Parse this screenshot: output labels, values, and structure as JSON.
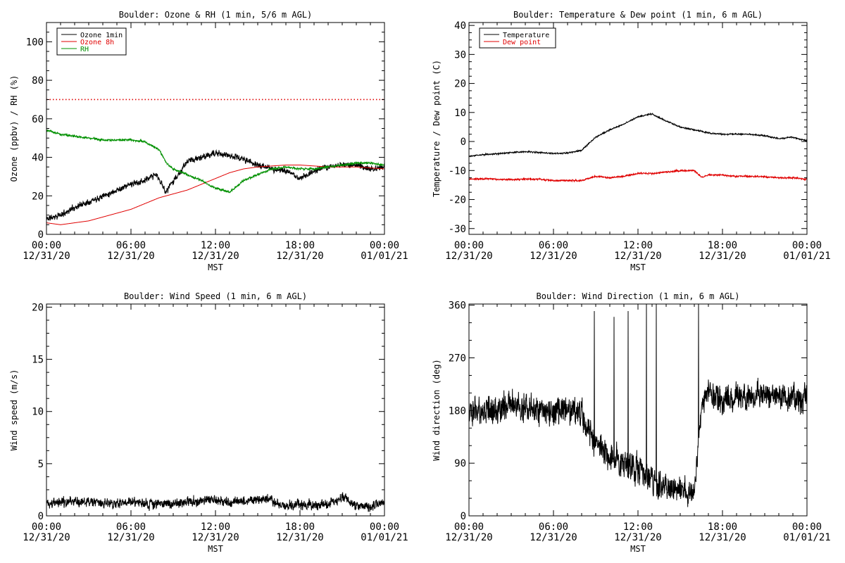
{
  "x_axis": {
    "ticks": [
      {
        "time": "00:00",
        "date": "12/31/20"
      },
      {
        "time": "06:00",
        "date": "12/31/20"
      },
      {
        "time": "12:00",
        "date": "12/31/20"
      },
      {
        "time": "18:00",
        "date": "12/31/20"
      },
      {
        "time": "00:00",
        "date": "01/01/21"
      }
    ],
    "label": "MST"
  },
  "chart_data": [
    {
      "type": "line",
      "title": "Boulder: Ozone & RH (1 min, 5/6 m AGL)",
      "ylabel": "Ozone (ppbv) / RH (%)",
      "xlabel": "MST",
      "x_unit": "hours since 00:00 MST 12/31/20",
      "xlim": [
        0,
        24
      ],
      "ylim": [
        0,
        110
      ],
      "yticks": [
        0,
        20,
        40,
        60,
        80,
        100
      ],
      "legend": "top-left",
      "reference_line": {
        "y": 70,
        "color": "#e00000",
        "style": "dotted"
      },
      "series": [
        {
          "name": "Ozone 1min",
          "color": "#000000",
          "noise": 2.0,
          "seed": 11,
          "x": [
            0,
            1,
            2,
            3,
            4,
            5,
            6,
            7,
            7.8,
            8.5,
            9,
            9.5,
            10,
            11,
            12,
            13,
            14,
            15,
            16,
            17,
            18,
            19,
            20,
            21,
            22,
            23,
            24
          ],
          "y": [
            8,
            10,
            14,
            17,
            20,
            23,
            26,
            28,
            31,
            22,
            28,
            32,
            38,
            40,
            42,
            41,
            39,
            36,
            34,
            33,
            29,
            33,
            35,
            36,
            36,
            34,
            35
          ]
        },
        {
          "name": "Ozone 8h",
          "color": "#e00000",
          "noise": 0,
          "seed": 1,
          "x": [
            0,
            1,
            2,
            3,
            4,
            5,
            6,
            7,
            8,
            9,
            10,
            11,
            12,
            13,
            14,
            15,
            16,
            17,
            18,
            19,
            20,
            21,
            22,
            23,
            24
          ],
          "y": [
            6,
            5,
            6,
            7,
            9,
            11,
            13,
            16,
            19,
            21,
            23,
            26,
            29,
            32,
            34,
            35,
            35.5,
            36,
            36,
            35.5,
            35,
            35,
            35,
            34.5,
            34
          ]
        },
        {
          "name": "RH",
          "color": "#009000",
          "noise": 0.7,
          "seed": 23,
          "x": [
            0,
            1,
            2,
            3,
            4,
            5,
            6,
            7,
            8,
            8.5,
            9,
            10,
            11,
            12,
            13,
            14,
            15,
            16,
            17,
            18,
            19,
            20,
            21,
            22,
            23,
            24
          ],
          "y": [
            54,
            52,
            51,
            50,
            49,
            49,
            49,
            48,
            44,
            37,
            34,
            31,
            28,
            24,
            22,
            28,
            31,
            34,
            35,
            34,
            34,
            35,
            36,
            37,
            37,
            36
          ]
        }
      ]
    },
    {
      "type": "line",
      "title": "Boulder: Temperature & Dew point (1 min, 6 m AGL)",
      "ylabel": "Temperature / Dew point (C)",
      "xlabel": "MST",
      "x_unit": "hours since 00:00 MST 12/31/20",
      "xlim": [
        0,
        24
      ],
      "ylim": [
        -32,
        41
      ],
      "yticks": [
        -30,
        -20,
        -10,
        0,
        10,
        20,
        30,
        40
      ],
      "legend": "top-left",
      "series": [
        {
          "name": "Temperature",
          "color": "#000000",
          "noise": 0.3,
          "seed": 31,
          "x": [
            0,
            1,
            2,
            3,
            4,
            5,
            6,
            7,
            8,
            9,
            10,
            11,
            12,
            13,
            14,
            15,
            16,
            17,
            18,
            19,
            20,
            21,
            22,
            23,
            24
          ],
          "y": [
            -5.2,
            -4.5,
            -4.2,
            -3.8,
            -3.5,
            -3.8,
            -4.2,
            -4.0,
            -3.0,
            1.5,
            4.0,
            6.0,
            8.5,
            9.5,
            7.0,
            5.0,
            4.0,
            3.0,
            2.5,
            2.5,
            2.5,
            2.0,
            1.0,
            1.5,
            0.2
          ]
        },
        {
          "name": "Dew point",
          "color": "#e00000",
          "noise": 0.35,
          "seed": 37,
          "x": [
            0,
            1,
            2,
            3,
            4,
            5,
            6,
            7,
            8,
            9,
            10,
            11,
            12,
            13,
            14,
            15,
            16,
            16.5,
            17,
            18,
            19,
            20,
            21,
            22,
            23,
            24
          ],
          "y": [
            -13,
            -12.8,
            -13,
            -13.2,
            -13,
            -13,
            -13.5,
            -13.4,
            -13.5,
            -12,
            -12.5,
            -12,
            -11,
            -11,
            -10.5,
            -10,
            -10,
            -12.3,
            -11.6,
            -11.5,
            -12,
            -12,
            -12.2,
            -12.5,
            -12.5,
            -13
          ]
        }
      ]
    },
    {
      "type": "line",
      "title": "Boulder: Wind Speed (1 min, 6 m AGL)",
      "ylabel": "Wind speed (m/s)",
      "xlabel": "MST",
      "x_unit": "hours since 00:00 MST 12/31/20",
      "xlim": [
        0,
        24
      ],
      "ylim": [
        0,
        20.3
      ],
      "yticks": [
        0,
        5,
        10,
        15,
        20
      ],
      "series": [
        {
          "name": "",
          "color": "#000000",
          "noise": 0.6,
          "seed": 41,
          "x": [
            0,
            1,
            2,
            3,
            4,
            5,
            6,
            7,
            8,
            9,
            10,
            11,
            12,
            13,
            14,
            15,
            16,
            17,
            18,
            19,
            20,
            21,
            22,
            23,
            24
          ],
          "y": [
            1.2,
            1.3,
            1.4,
            1.3,
            1.2,
            1.2,
            1.3,
            1.2,
            1.1,
            1.2,
            1.3,
            1.5,
            1.5,
            1.3,
            1.4,
            1.6,
            1.5,
            0.9,
            1.1,
            1.1,
            1.1,
            1.8,
            1.0,
            0.9,
            1.3
          ]
        }
      ]
    },
    {
      "type": "line",
      "title": "Boulder: Wind Direction (1 min, 6 m AGL)",
      "ylabel": "Wind direction (deg)",
      "xlabel": "MST",
      "x_unit": "hours since 00:00 MST 12/31/20",
      "xlim": [
        0,
        24
      ],
      "ylim": [
        0,
        362
      ],
      "yticks": [
        0,
        90,
        180,
        270,
        360
      ],
      "series": [
        {
          "name": "",
          "color": "#000000",
          "noise": 30,
          "seed": 53,
          "x": [
            0,
            1,
            2,
            3,
            4,
            5,
            6,
            7,
            8,
            9,
            10,
            11,
            12,
            13,
            14,
            15,
            16,
            16.5,
            17,
            18,
            19,
            20,
            21,
            22,
            23,
            24
          ],
          "y": [
            175,
            185,
            180,
            190,
            185,
            180,
            180,
            180,
            175,
            120,
            100,
            90,
            80,
            60,
            50,
            45,
            40,
            190,
            210,
            195,
            205,
            200,
            210,
            205,
            200,
            200
          ],
          "spikes": [
            [
              8.9,
              350
            ],
            [
              10.3,
              340
            ],
            [
              11.3,
              350
            ],
            [
              12.6,
              362
            ],
            [
              13.3,
              362
            ],
            [
              16.3,
              362
            ]
          ]
        }
      ]
    }
  ]
}
